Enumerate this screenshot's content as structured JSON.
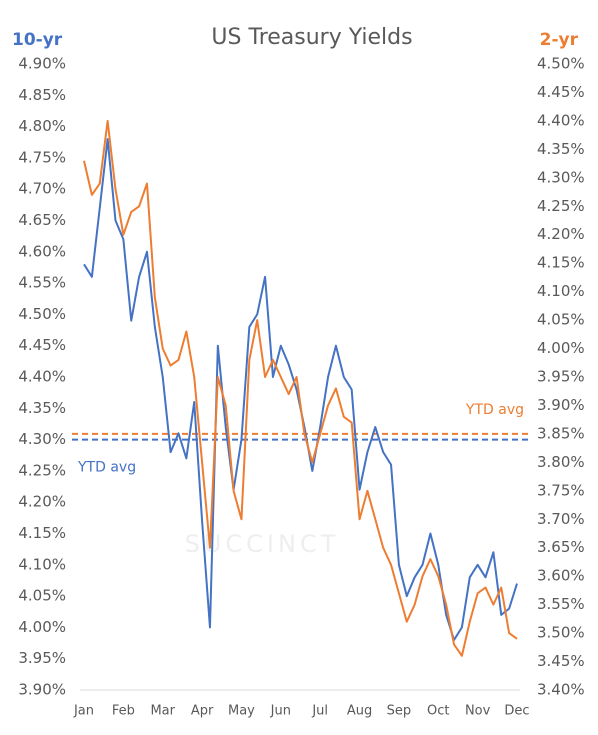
{
  "chart_data": {
    "type": "line",
    "title": "US Treasury Yields",
    "y_axis_label": "10-yr",
    "y2_axis_label": "2-yr",
    "watermark": "SUCCINCT",
    "categories": [
      "Jan",
      null,
      null,
      null,
      null,
      "Feb",
      null,
      null,
      null,
      null,
      "Mar",
      null,
      null,
      null,
      null,
      "Apr",
      null,
      null,
      null,
      null,
      "May",
      null,
      null,
      null,
      null,
      "Jun",
      null,
      null,
      null,
      null,
      "Jul",
      null,
      null,
      null,
      null,
      "Aug",
      null,
      null,
      null,
      null,
      "Sep",
      null,
      null,
      null,
      null,
      "Oct",
      null,
      null,
      null,
      null,
      "Nov",
      null,
      null,
      null,
      null,
      "Dec"
    ],
    "series": [
      {
        "name": "10-yr",
        "color": "#4472c4",
        "axis": "y",
        "values": [
          4.58,
          4.56,
          4.67,
          4.78,
          4.65,
          4.62,
          4.49,
          4.56,
          4.6,
          4.48,
          4.4,
          4.28,
          4.31,
          4.27,
          4.36,
          4.17,
          4.0,
          4.45,
          4.32,
          4.22,
          4.3,
          4.48,
          4.5,
          4.56,
          4.4,
          4.45,
          4.42,
          4.38,
          4.32,
          4.25,
          4.32,
          4.4,
          4.45,
          4.4,
          4.38,
          4.22,
          4.28,
          4.32,
          4.28,
          4.26,
          4.1,
          4.05,
          4.08,
          4.1,
          4.15,
          4.1,
          4.02,
          3.98,
          4.0,
          4.08,
          4.1,
          4.08,
          4.12,
          4.02,
          4.03,
          4.07
        ]
      },
      {
        "name": "2-yr",
        "color": "#ed7d31",
        "axis": "y2",
        "values": [
          4.33,
          4.27,
          4.29,
          4.4,
          4.28,
          4.2,
          4.24,
          4.25,
          4.29,
          4.09,
          4.0,
          3.97,
          3.98,
          4.03,
          3.95,
          3.8,
          3.65,
          3.95,
          3.9,
          3.75,
          3.7,
          3.98,
          4.05,
          3.95,
          3.98,
          3.95,
          3.92,
          3.95,
          3.85,
          3.8,
          3.85,
          3.9,
          3.93,
          3.88,
          3.87,
          3.7,
          3.75,
          3.7,
          3.65,
          3.62,
          3.57,
          3.52,
          3.55,
          3.6,
          3.63,
          3.6,
          3.55,
          3.48,
          3.46,
          3.52,
          3.57,
          3.58,
          3.55,
          3.58,
          3.5,
          3.49
        ]
      }
    ],
    "reference_lines": [
      {
        "label": "YTD avg",
        "value": 4.3,
        "axis": "y",
        "color": "#4472c4"
      },
      {
        "label": "YTD avg",
        "value": 3.85,
        "axis": "y2",
        "color": "#ed7d31"
      }
    ],
    "ylim": [
      3.9,
      4.9
    ],
    "yticks": [
      {
        "value": 4.9,
        "label": "4.90%"
      },
      {
        "value": 4.85,
        "label": "4.85%"
      },
      {
        "value": 4.8,
        "label": "4.80%"
      },
      {
        "value": 4.75,
        "label": "4.75%"
      },
      {
        "value": 4.7,
        "label": "4.70%"
      },
      {
        "value": 4.65,
        "label": "4.65%"
      },
      {
        "value": 4.6,
        "label": "4.60%"
      },
      {
        "value": 4.55,
        "label": "4.55%"
      },
      {
        "value": 4.5,
        "label": "4.50%"
      },
      {
        "value": 4.45,
        "label": "4.45%"
      },
      {
        "value": 4.4,
        "label": "4.40%"
      },
      {
        "value": 4.35,
        "label": "4.35%"
      },
      {
        "value": 4.3,
        "label": "4.30%"
      },
      {
        "value": 4.25,
        "label": "4.25%"
      },
      {
        "value": 4.2,
        "label": "4.20%"
      },
      {
        "value": 4.15,
        "label": "4.15%"
      },
      {
        "value": 4.1,
        "label": "4.10%"
      },
      {
        "value": 4.05,
        "label": "4.05%"
      },
      {
        "value": 4.0,
        "label": "4.00%"
      },
      {
        "value": 3.95,
        "label": "3.95%"
      },
      {
        "value": 3.9,
        "label": "3.90%"
      }
    ],
    "y2lim": [
      3.4,
      4.5
    ],
    "y2ticks": [
      {
        "value": 4.5,
        "label": "4.50%"
      },
      {
        "value": 4.45,
        "label": "4.45%"
      },
      {
        "value": 4.4,
        "label": "4.40%"
      },
      {
        "value": 4.35,
        "label": "4.35%"
      },
      {
        "value": 4.3,
        "label": "4.30%"
      },
      {
        "value": 4.25,
        "label": "4.25%"
      },
      {
        "value": 4.2,
        "label": "4.20%"
      },
      {
        "value": 4.15,
        "label": "4.15%"
      },
      {
        "value": 4.1,
        "label": "4.10%"
      },
      {
        "value": 4.05,
        "label": "4.05%"
      },
      {
        "value": 4.0,
        "label": "4.00%"
      },
      {
        "value": 3.95,
        "label": "3.95%"
      },
      {
        "value": 3.9,
        "label": "3.90%"
      },
      {
        "value": 3.85,
        "label": "3.85%"
      },
      {
        "value": 3.8,
        "label": "3.80%"
      },
      {
        "value": 3.75,
        "label": "3.75%"
      },
      {
        "value": 3.7,
        "label": "3.70%"
      },
      {
        "value": 3.65,
        "label": "3.65%"
      },
      {
        "value": 3.6,
        "label": "3.60%"
      },
      {
        "value": 3.55,
        "label": "3.55%"
      },
      {
        "value": 3.5,
        "label": "3.50%"
      },
      {
        "value": 3.45,
        "label": "3.45%"
      },
      {
        "value": 3.4,
        "label": "3.40%"
      }
    ],
    "grid": false
  }
}
